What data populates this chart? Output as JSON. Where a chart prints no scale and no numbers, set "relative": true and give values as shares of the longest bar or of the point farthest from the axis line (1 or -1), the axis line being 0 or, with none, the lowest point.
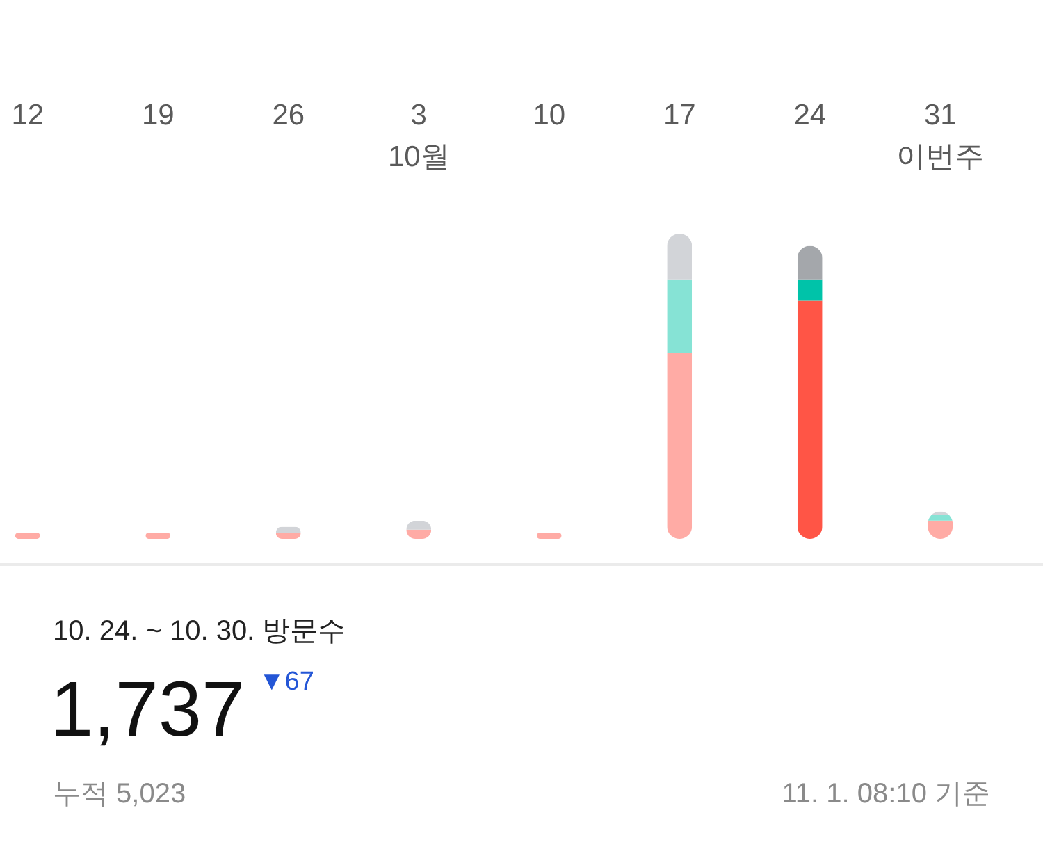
{
  "chart_data": {
    "type": "bar",
    "stacked": true,
    "relative": true,
    "categories": [
      "12",
      "19",
      "26",
      "3\n10월",
      "10",
      "17",
      "24",
      "31\n이번주"
    ],
    "series": [
      {
        "colors": [
          "#ffaba5",
          "#ffaba5",
          "#ffaba5",
          "#ffaba5",
          "#ffaba5",
          "#ffaba5",
          "#ff5546",
          "#ffaba5"
        ],
        "values": [
          0.02,
          0.02,
          0.02,
          0.03,
          0.02,
          0.61,
          0.78,
          0.06
        ]
      },
      {
        "colors": [
          null,
          null,
          null,
          null,
          null,
          "#86e3d5",
          "#00c3a9",
          "#86e3d5"
        ],
        "values": [
          null,
          null,
          null,
          null,
          null,
          0.24,
          0.07,
          0.02
        ]
      },
      {
        "colors": [
          null,
          null,
          "#d2d4d8",
          "#d2d4d8",
          null,
          "#d2d4d8",
          "#a4a7ab",
          "#d2d4d8"
        ],
        "values": [
          null,
          null,
          0.02,
          0.03,
          null,
          0.15,
          0.11,
          0.01
        ]
      }
    ],
    "annotations": [
      "10. 24. ~ 10. 30. 방문수",
      "1,737",
      "▼67",
      "누적 5,023",
      "11. 1. 08:10 기준"
    ]
  }
}
